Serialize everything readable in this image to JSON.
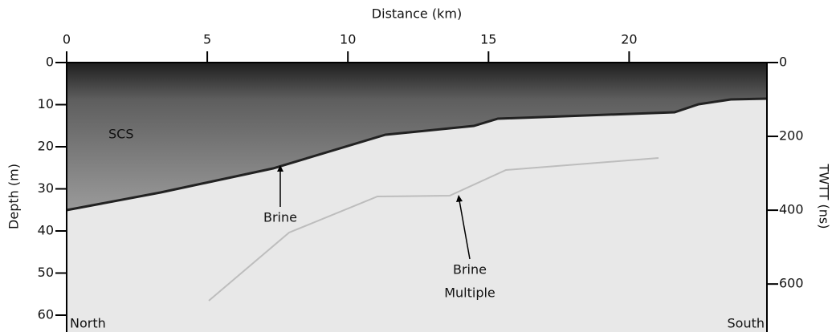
{
  "chart_data": {
    "type": "radargram",
    "xlabel": "Distance (km)",
    "ylabel": "Depth (m)",
    "y2label": "TWTT (ns)",
    "xlim": [
      0,
      24.9
    ],
    "xticks": [
      0,
      5,
      10,
      15,
      20
    ],
    "ylim": [
      0,
      64
    ],
    "yticks": [
      0,
      10,
      20,
      30,
      40,
      50,
      60
    ],
    "y2lim": [
      0,
      730
    ],
    "y2ticks": [
      0,
      200,
      400,
      600
    ],
    "annotations": [
      "SCS",
      "Brine",
      "Brine",
      "Multiple",
      "North",
      "South"
    ]
  }
}
